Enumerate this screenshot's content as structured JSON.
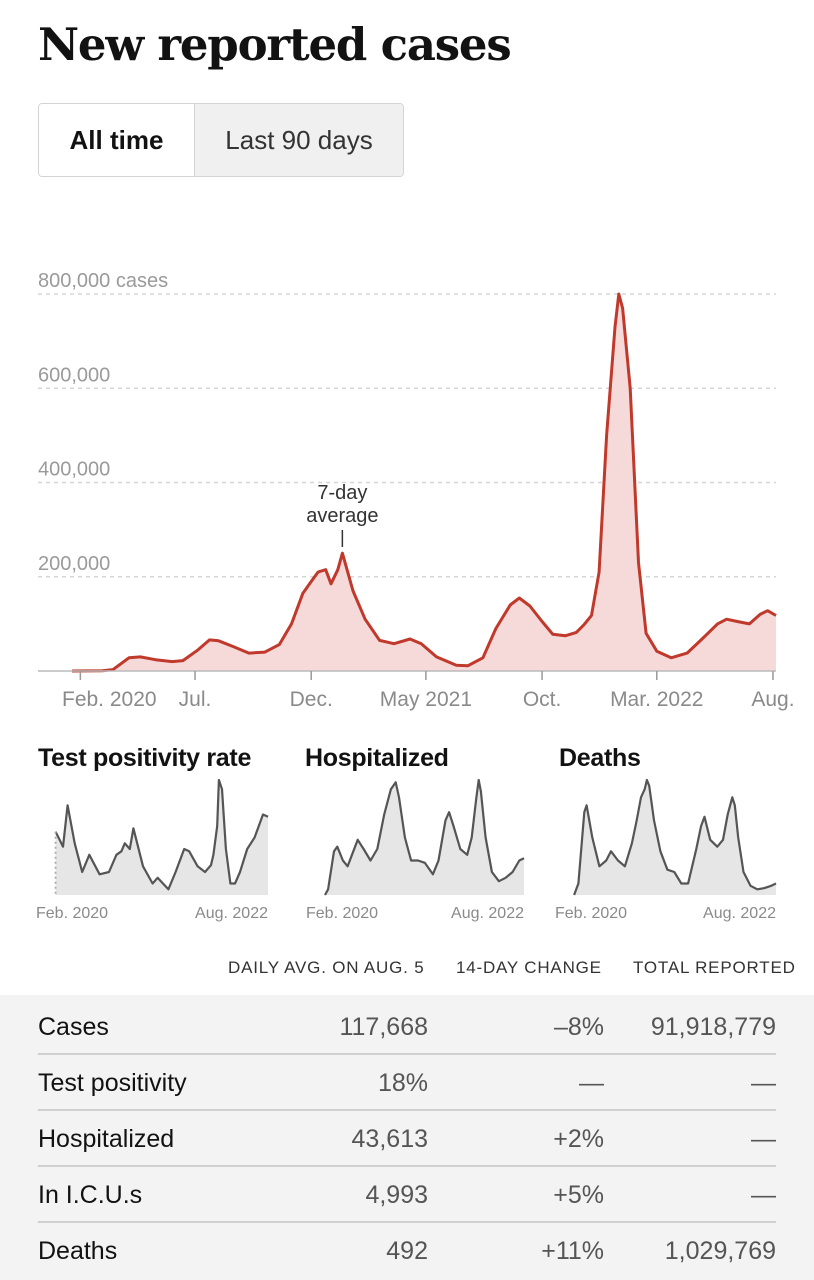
{
  "page": {
    "title": "New reported cases"
  },
  "toggle": {
    "all_time": "All time",
    "last_90": "Last 90 days"
  },
  "chart_data": [
    {
      "type": "area",
      "title": "New reported cases",
      "ylabel": "cases",
      "ylim": [
        0,
        800000
      ],
      "y_ticks": [
        "800,000 cases",
        "600,000",
        "400,000",
        "200,000"
      ],
      "y_tick_values": [
        800000,
        600000,
        400000,
        200000
      ],
      "x_ticks": [
        "Feb. 2020",
        "Jul.",
        "Dec.",
        "May 2021",
        "Oct.",
        "Mar. 2022",
        "Aug."
      ],
      "x_tick_dates": [
        "2020-02-01",
        "2020-07-01",
        "2020-12-01",
        "2021-05-01",
        "2021-10-01",
        "2022-03-01",
        "2022-08-01"
      ],
      "annotation": "7-day average",
      "annotation_date": "2021-01-11",
      "line_color": "#c0392b",
      "fill_color": "#f6dada",
      "grid": true,
      "series": [
        {
          "name": "7-day average",
          "x": [
            "2020-01-21",
            "2020-03-01",
            "2020-03-15",
            "2020-04-05",
            "2020-04-20",
            "2020-05-10",
            "2020-06-01",
            "2020-06-15",
            "2020-07-05",
            "2020-07-20",
            "2020-08-01",
            "2020-08-20",
            "2020-09-10",
            "2020-10-01",
            "2020-10-20",
            "2020-11-05",
            "2020-11-20",
            "2020-12-01",
            "2020-12-10",
            "2020-12-20",
            "2020-12-27",
            "2021-01-05",
            "2021-01-11",
            "2021-01-25",
            "2021-02-10",
            "2021-03-01",
            "2021-03-20",
            "2021-04-10",
            "2021-04-25",
            "2021-05-15",
            "2021-06-10",
            "2021-06-25",
            "2021-07-15",
            "2021-08-01",
            "2021-08-20",
            "2021-09-01",
            "2021-09-15",
            "2021-10-01",
            "2021-10-15",
            "2021-11-01",
            "2021-11-15",
            "2021-11-25",
            "2021-12-05",
            "2021-12-15",
            "2021-12-25",
            "2022-01-05",
            "2022-01-10",
            "2022-01-15",
            "2022-01-25",
            "2022-02-05",
            "2022-02-15",
            "2022-03-01",
            "2022-03-20",
            "2022-04-10",
            "2022-05-01",
            "2022-05-20",
            "2022-06-01",
            "2022-06-15",
            "2022-07-01",
            "2022-07-15",
            "2022-07-25",
            "2022-08-05"
          ],
          "y": [
            0,
            500,
            3000,
            28000,
            30000,
            24000,
            20000,
            22000,
            45000,
            66000,
            64000,
            52000,
            38000,
            40000,
            56000,
            100000,
            165000,
            190000,
            210000,
            215000,
            185000,
            215000,
            250000,
            170000,
            110000,
            65000,
            58000,
            68000,
            58000,
            30000,
            12000,
            11000,
            28000,
            90000,
            140000,
            155000,
            138000,
            105000,
            78000,
            75000,
            82000,
            98000,
            118000,
            210000,
            500000,
            730000,
            800000,
            770000,
            600000,
            230000,
            80000,
            42000,
            28000,
            38000,
            70000,
            100000,
            110000,
            105000,
            100000,
            120000,
            128000,
            117668
          ]
        }
      ]
    },
    {
      "type": "area",
      "title": "Test positivity rate",
      "x_ticks": [
        "Feb. 2020",
        "Aug. 2022"
      ],
      "series": [
        {
          "name": "Test positivity rate",
          "x": [
            "2020-03-01",
            "2020-04-01",
            "2020-04-20",
            "2020-05-20",
            "2020-06-20",
            "2020-07-20",
            "2020-09-01",
            "2020-10-10",
            "2020-11-10",
            "2020-12-01",
            "2020-12-15",
            "2021-01-05",
            "2021-01-20",
            "2021-03-01",
            "2021-04-10",
            "2021-05-01",
            "2021-06-15",
            "2021-07-15",
            "2021-08-20",
            "2021-09-10",
            "2021-10-15",
            "2021-11-15",
            "2021-12-10",
            "2021-12-20",
            "2022-01-05",
            "2022-01-12",
            "2022-01-25",
            "2022-02-10",
            "2022-03-01",
            "2022-03-20",
            "2022-04-10",
            "2022-05-10",
            "2022-06-10",
            "2022-07-15",
            "2022-08-05"
          ],
          "y": [
            0.55,
            0.42,
            0.78,
            0.45,
            0.2,
            0.35,
            0.18,
            0.2,
            0.35,
            0.38,
            0.45,
            0.4,
            0.58,
            0.25,
            0.1,
            0.15,
            0.05,
            0.2,
            0.4,
            0.38,
            0.25,
            0.2,
            0.26,
            0.35,
            0.6,
            1.0,
            0.92,
            0.4,
            0.1,
            0.1,
            0.2,
            0.4,
            0.5,
            0.7,
            0.68
          ]
        }
      ]
    },
    {
      "type": "area",
      "title": "Hospitalized",
      "x_ticks": [
        "Feb. 2020",
        "Aug. 2022"
      ],
      "series": [
        {
          "name": "Hospitalized",
          "x": [
            "2020-03-01",
            "2020-03-15",
            "2020-04-10",
            "2020-04-25",
            "2020-05-20",
            "2020-06-10",
            "2020-07-25",
            "2020-08-20",
            "2020-09-20",
            "2020-10-20",
            "2020-11-20",
            "2020-12-20",
            "2021-01-10",
            "2021-01-25",
            "2021-02-20",
            "2021-03-20",
            "2021-04-20",
            "2021-05-20",
            "2021-06-25",
            "2021-07-20",
            "2021-08-20",
            "2021-09-05",
            "2021-09-25",
            "2021-10-25",
            "2021-11-25",
            "2021-12-15",
            "2022-01-05",
            "2022-01-15",
            "2022-01-25",
            "2022-02-15",
            "2022-03-15",
            "2022-04-15",
            "2022-05-15",
            "2022-06-15",
            "2022-07-15",
            "2022-08-05"
          ],
          "y": [
            0,
            0.05,
            0.38,
            0.42,
            0.3,
            0.25,
            0.48,
            0.4,
            0.3,
            0.4,
            0.7,
            0.92,
            0.98,
            0.85,
            0.5,
            0.3,
            0.3,
            0.28,
            0.18,
            0.3,
            0.65,
            0.72,
            0.6,
            0.4,
            0.35,
            0.5,
            0.85,
            1.0,
            0.9,
            0.5,
            0.2,
            0.12,
            0.15,
            0.2,
            0.3,
            0.32
          ]
        }
      ]
    },
    {
      "type": "area",
      "title": "Deaths",
      "x_ticks": [
        "Feb. 2020",
        "Aug. 2022"
      ],
      "series": [
        {
          "name": "Deaths",
          "x": [
            "2020-03-01",
            "2020-03-20",
            "2020-04-15",
            "2020-04-25",
            "2020-05-20",
            "2020-06-20",
            "2020-07-20",
            "2020-08-10",
            "2020-09-10",
            "2020-10-10",
            "2020-11-10",
            "2020-12-01",
            "2020-12-20",
            "2021-01-05",
            "2021-01-15",
            "2021-01-25",
            "2021-02-15",
            "2021-03-15",
            "2021-04-15",
            "2021-05-15",
            "2021-06-15",
            "2021-07-15",
            "2021-08-20",
            "2021-09-10",
            "2021-09-25",
            "2021-10-20",
            "2021-11-20",
            "2021-12-15",
            "2022-01-05",
            "2022-01-25",
            "2022-02-05",
            "2022-02-20",
            "2022-03-15",
            "2022-04-15",
            "2022-05-15",
            "2022-06-15",
            "2022-07-15",
            "2022-08-05"
          ],
          "y": [
            0,
            0.1,
            0.72,
            0.78,
            0.5,
            0.25,
            0.3,
            0.38,
            0.3,
            0.25,
            0.45,
            0.65,
            0.85,
            0.92,
            1.0,
            0.95,
            0.65,
            0.38,
            0.22,
            0.2,
            0.1,
            0.1,
            0.4,
            0.6,
            0.68,
            0.48,
            0.42,
            0.48,
            0.7,
            0.85,
            0.78,
            0.5,
            0.2,
            0.08,
            0.05,
            0.06,
            0.08,
            0.1
          ]
        }
      ]
    }
  ],
  "table": {
    "headers": [
      "DAILY AVG. ON AUG. 5",
      "14-DAY CHANGE",
      "TOTAL REPORTED"
    ],
    "rows": [
      {
        "label": "Cases",
        "avg": "117,668",
        "change": "–8%",
        "total": "91,918,779"
      },
      {
        "label": "Test positivity",
        "avg": "18%",
        "change": "—",
        "total": "—"
      },
      {
        "label": "Hospitalized",
        "avg": "43,613",
        "change": "+2%",
        "total": "—"
      },
      {
        "label": "In I.C.U.s",
        "avg": "4,993",
        "change": "+5%",
        "total": "—"
      },
      {
        "label": "Deaths",
        "avg": "492",
        "change": "+11%",
        "total": "1,029,769"
      }
    ]
  }
}
